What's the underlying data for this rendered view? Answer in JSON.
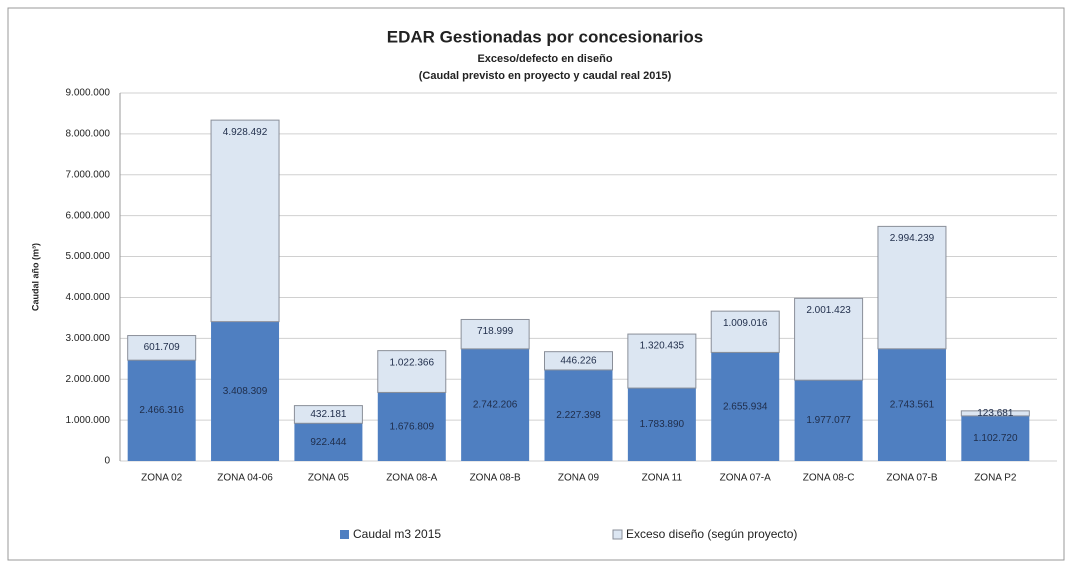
{
  "chart_data": {
    "type": "stacked_bar",
    "title": "EDAR Gestionadas por concesionarios",
    "subtitle": [
      "Exceso/defecto en diseño",
      "(Caudal previsto en proyecto y caudal real 2015)"
    ],
    "y_label": "Caudal año (m³)",
    "categories": [
      "ZONA 02",
      "ZONA 04-06",
      "ZONA 05",
      "ZONA 08-A",
      "ZONA 08-B",
      "ZONA 09",
      "ZONA 11",
      "ZONA 07-A",
      "ZONA 08-C",
      "ZONA 07-B",
      "ZONA P2"
    ],
    "series": [
      {
        "name": "Caudal m3 2015",
        "color": "#4f7fc1",
        "values": [
          2466316,
          3408309,
          922444,
          1676809,
          2742206,
          2227398,
          1783890,
          2655934,
          1977077,
          2743561,
          1102720
        ],
        "value_labels": [
          "2.466.316",
          "3.408.309",
          "922.444",
          "1.676.809",
          "2.742.206",
          "2.227.398",
          "1.783.890",
          "2.655.934",
          "1.977.077",
          "2.743.561",
          "1.102.720"
        ]
      },
      {
        "name": "Exceso diseño (según proyecto)",
        "color": "#dce6f2",
        "values": [
          601709,
          4928492,
          432181,
          1022366,
          718999,
          446226,
          1320435,
          1009016,
          2001423,
          2994239,
          123681
        ],
        "value_labels": [
          "601.709",
          "4.928.492",
          "432.181",
          "1.022.366",
          "718.999",
          "446.226",
          "1.320.435",
          "1.009.016",
          "2.001.423",
          "2.994.239",
          "123.681"
        ]
      }
    ],
    "ylim": [
      0,
      9000000
    ],
    "yticks": [
      0,
      {
        "value": 1000000,
        "label": "1.000.000"
      },
      {
        "value": 2000000,
        "label": "2.000.000"
      },
      {
        "value": 3000000,
        "label": "3.000.000"
      },
      {
        "value": 4000000,
        "label": "4.000.000"
      },
      {
        "value": 5000000,
        "label": "5.000.000"
      },
      {
        "value": 6000000,
        "label": "6.000.000"
      },
      {
        "value": 7000000,
        "label": "7.000.000"
      },
      {
        "value": 8000000,
        "label": "8.000.000"
      },
      {
        "value": 9000000,
        "label": "9.000.000"
      }
    ],
    "grid": true,
    "legend": "bottom"
  }
}
